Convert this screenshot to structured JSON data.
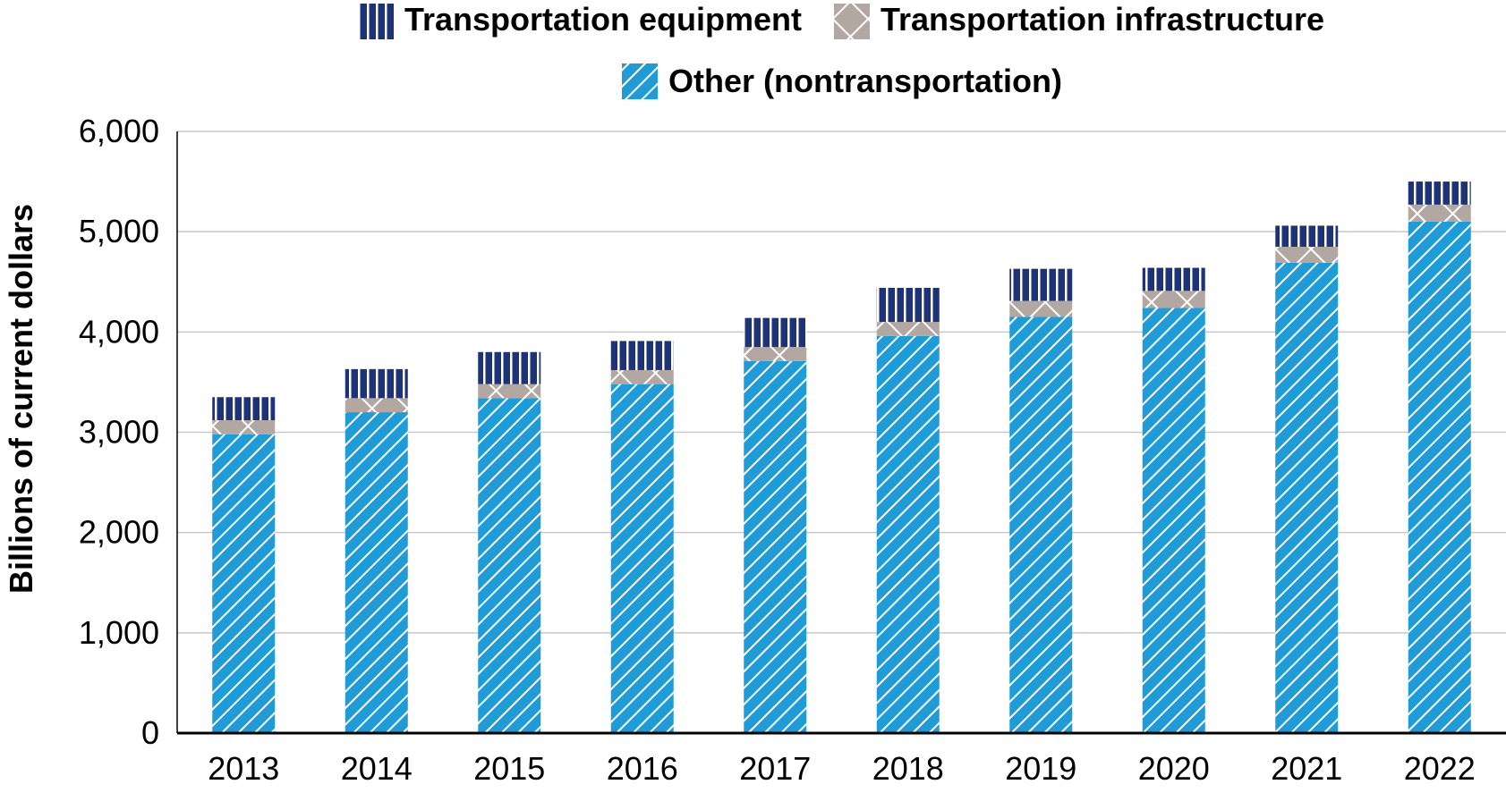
{
  "chart_data": {
    "type": "bar",
    "stacked": true,
    "categories": [
      "2013",
      "2014",
      "2015",
      "2016",
      "2017",
      "2018",
      "2019",
      "2020",
      "2021",
      "2022"
    ],
    "series": [
      {
        "name": "Other (nontransportation)",
        "color": "#1f9bd7",
        "pattern": "diagonal-stripes",
        "values": [
          2980,
          3200,
          3340,
          3480,
          3710,
          3960,
          4150,
          4240,
          4690,
          5100
        ]
      },
      {
        "name": "Transportation infrastructure",
        "color": "#b3a7a2",
        "pattern": "crosshatch",
        "values": [
          140,
          140,
          140,
          140,
          140,
          140,
          160,
          170,
          160,
          170
        ]
      },
      {
        "name": "Transportation equipment",
        "color": "#1d3377",
        "pattern": "vertical-stripes",
        "values": [
          230,
          290,
          320,
          290,
          290,
          340,
          320,
          230,
          210,
          230
        ]
      }
    ],
    "legend_order": [
      "Transportation equipment",
      "Transportation infrastructure",
      "Other (nontransportation)"
    ],
    "ylabel": "Billions of current dollars",
    "xlabel": "",
    "title": "",
    "ylim": [
      0,
      6000
    ],
    "yticks": [
      0,
      1000,
      2000,
      3000,
      4000,
      5000,
      6000
    ],
    "ytick_labels": [
      "0",
      "1,000",
      "2,000",
      "3,000",
      "4,000",
      "5,000",
      "6,000"
    ],
    "grid": true,
    "legend_position": "top-center"
  }
}
